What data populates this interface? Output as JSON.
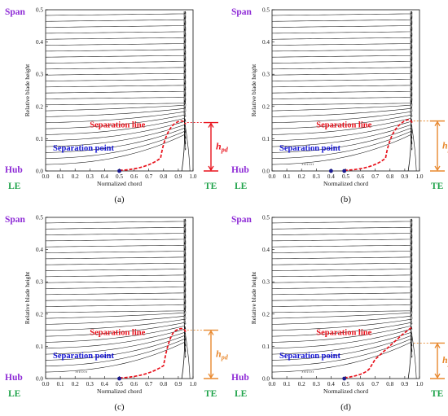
{
  "figure": {
    "colors": {
      "purple": "#8e2bd6",
      "green": "#1fa34a",
      "red": "#e8121c",
      "blue": "#1414d2",
      "orange": "#e8892f",
      "black": "#111111"
    },
    "panels": [
      {
        "id": "a",
        "caption": "(a)",
        "span_label": "Span",
        "hub_label": "Hub",
        "le_label": "LE",
        "te_label": "TE",
        "sep_line_label": "Separation line",
        "sep_point_label": "Separation point",
        "hpd_main": "h",
        "hpd_sub": "pd",
        "y_axis_title": "Relative blade height",
        "x_axis_title": "Normalized chord",
        "x_ticks": [
          "0.0",
          "0.1",
          "0.2",
          "0.3",
          "0.4",
          "0.5",
          "0.6",
          "0.7",
          "0.8",
          "0.9",
          "1.0"
        ],
        "y_ticks": [
          "0.0",
          "0.1",
          "0.2",
          "0.3",
          "0.4",
          "0.5"
        ],
        "sep_point_x": 0.5,
        "hpd_value": 0.15,
        "hpd_color": "#e8121c",
        "chevrons": "",
        "sep_line_rise": 0.78
      },
      {
        "id": "b",
        "caption": "(b)",
        "span_label": "Span",
        "hub_label": "Hub",
        "le_label": "LE",
        "te_label": "TE",
        "sep_line_label": "Separation line",
        "sep_point_label": "Separation point",
        "hpd_main": "h",
        "hpd_sub": "pd",
        "y_axis_title": "Relative blade height",
        "x_axis_title": "Normalized chord",
        "x_ticks": [
          "0.0",
          "0.1",
          "0.2",
          "0.3",
          "0.4",
          "0.5",
          "0.6",
          "0.7",
          "0.8",
          "0.9",
          "1.0"
        ],
        "y_ticks": [
          "0.0",
          "0.1",
          "0.2",
          "0.3",
          "0.4",
          "0.5"
        ],
        "sep_point_x": 0.49,
        "sep_point_x2": 0.4,
        "hpd_value": 0.155,
        "hpd_color": "#e8892f",
        "chevrons": "›››››››",
        "sep_line_rise": 0.77
      },
      {
        "id": "c",
        "caption": "(c)",
        "span_label": "Span",
        "hub_label": "Hub",
        "le_label": "LE",
        "te_label": "TE",
        "sep_line_label": "Separation line",
        "sep_point_label": "Separation point",
        "hpd_main": "h",
        "hpd_sub": "pd",
        "y_axis_title": "Relative blade height",
        "x_axis_title": "Normalized chord",
        "x_ticks": [
          "0.0",
          "0.1",
          "0.2",
          "0.3",
          "0.4",
          "0.5",
          "0.6",
          "0.7",
          "0.8",
          "0.9",
          "1.0"
        ],
        "y_ticks": [
          "0.0",
          "0.1",
          "0.2",
          "0.3",
          "0.4",
          "0.5"
        ],
        "sep_point_x": 0.5,
        "hpd_value": 0.15,
        "hpd_color": "#e8892f",
        "chevrons": "›››››››",
        "sep_line_rise": 0.8
      },
      {
        "id": "d",
        "caption": "(d)",
        "span_label": "Span",
        "hub_label": "Hub",
        "le_label": "LE",
        "te_label": "TE",
        "sep_line_label": "Separation line",
        "sep_point_label": "Separation point",
        "hpd_main": "h",
        "hpd_sub": "pd",
        "y_axis_title": "Relative blade height",
        "x_axis_title": "Normalized chord",
        "x_ticks": [
          "0.0",
          "0.1",
          "0.2",
          "0.3",
          "0.4",
          "0.5",
          "0.6",
          "0.7",
          "0.8",
          "0.9",
          "1.0"
        ],
        "y_ticks": [
          "0.0",
          "0.1",
          "0.2",
          "0.3",
          "0.4",
          "0.5"
        ],
        "sep_point_x": 0.49,
        "hpd_value": 0.11,
        "hpd_color": "#e8892f",
        "chevrons": "›››››››",
        "sep_line_rise": 0.7
      }
    ]
  }
}
